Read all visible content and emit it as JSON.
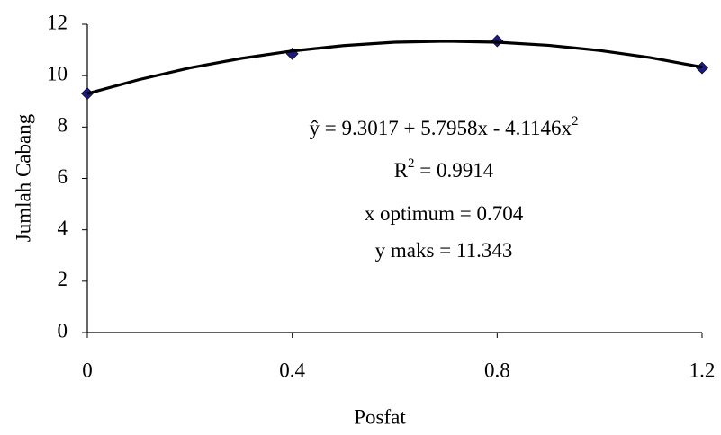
{
  "chart_data": {
    "type": "scatter",
    "x_label": "Posfat",
    "y_label": "Jumlah Cabang",
    "xlim": [
      0,
      1.2
    ],
    "xticks": [
      0,
      0.4,
      0.8,
      1.2
    ],
    "ylim": [
      0,
      12
    ],
    "yticks": [
      0,
      2,
      4,
      6,
      8,
      10,
      12
    ],
    "series": [
      {
        "color": "#1c1c80",
        "marker": "diamond",
        "x": [
          0,
          0.4,
          0.8,
          1.2
        ],
        "values": [
          9.3,
          10.85,
          11.35,
          10.3
        ]
      },
      {
        "color": "#000000",
        "marker": "line",
        "x": [
          0,
          0.1,
          0.2,
          0.3,
          0.4,
          0.5,
          0.6,
          0.7,
          0.8,
          0.9,
          1.0,
          1.1,
          1.2
        ],
        "values": [
          9.3,
          9.84,
          10.3,
          10.67,
          10.96,
          11.17,
          11.3,
          11.34,
          11.3,
          11.18,
          10.98,
          10.7,
          10.33
        ]
      }
    ],
    "annotations": [
      {
        "text": "ŷ =  9.3017 + 5.7958x - 4.1146x",
        "sup": "2"
      },
      {
        "text": "R",
        "sup": "2",
        "rest": " = 0.9914"
      },
      {
        "text": "x optimum = 0.704"
      },
      {
        "text": "y maks = 11.343"
      }
    ]
  }
}
